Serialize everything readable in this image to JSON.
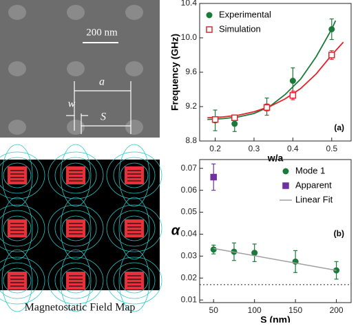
{
  "panels": {
    "sem": {
      "scale_bar": "200 nm",
      "labels": [
        "a",
        "w",
        "S"
      ]
    },
    "field_map": {
      "caption": "Magnetostatic Field Map"
    }
  },
  "chart_data": [
    {
      "type": "scatter",
      "annotation": "(a)",
      "xlabel": "w/a",
      "ylabel": "Frequency (GHz)",
      "xlim": [
        0.16,
        0.55
      ],
      "xticks": [
        0.2,
        0.3,
        0.4,
        0.5
      ],
      "ylim": [
        8.8,
        10.4
      ],
      "yticks": [
        8.8,
        9.2,
        9.6,
        {
          "value": 10,
          "label": "10.0"
        },
        10.4
      ],
      "legend": "top-left",
      "series": [
        {
          "name": "Experimental",
          "color": "#1a7a3a",
          "marker": "circle",
          "x": [
            0.2,
            0.25,
            0.333,
            0.4,
            0.5
          ],
          "values": [
            9.04,
            9.0,
            9.2,
            9.5,
            10.1
          ],
          "errors": [
            0.12,
            0.09,
            0.1,
            0.15,
            0.12
          ],
          "fit": {
            "x": [
              0.18,
              0.22,
              0.26,
              0.3,
              0.34,
              0.38,
              0.42,
              0.46,
              0.5,
              0.51
            ],
            "values": [
              9.05,
              9.06,
              9.08,
              9.12,
              9.2,
              9.34,
              9.52,
              9.78,
              10.1,
              10.2
            ]
          }
        },
        {
          "name": "Simulation",
          "color": "#e8202a",
          "marker": "square",
          "x": [
            0.2,
            0.25,
            0.333,
            0.4,
            0.5
          ],
          "values": [
            9.05,
            9.07,
            9.19,
            9.33,
            9.8
          ],
          "errors": [
            0.03,
            0.03,
            0.04,
            0.05,
            0.05
          ],
          "fit": {
            "x": [
              0.18,
              0.22,
              0.26,
              0.3,
              0.34,
              0.38,
              0.42,
              0.46,
              0.5,
              0.53
            ],
            "values": [
              9.07,
              9.08,
              9.1,
              9.14,
              9.2,
              9.29,
              9.41,
              9.58,
              9.8,
              9.95
            ]
          }
        }
      ]
    },
    {
      "type": "scatter",
      "annotation": "(b)",
      "xlabel": "S (nm)",
      "ylabel": "α",
      "xlim": [
        33,
        218
      ],
      "xticks": [
        50,
        100,
        150,
        200
      ],
      "ylim": [
        0.0088,
        0.074
      ],
      "yticks": [
        0.01,
        0.02,
        0.03,
        0.04,
        0.05,
        0.06,
        0.07
      ],
      "legend": "top-right",
      "reference_line": 0.017,
      "series": [
        {
          "name": "Mode 1",
          "color": "#1a7a3a",
          "marker": "circle",
          "x": [
            50,
            75,
            100,
            150,
            200
          ],
          "values": [
            0.033,
            0.032,
            0.0315,
            0.0275,
            0.0235
          ],
          "errors": [
            0.002,
            0.004,
            0.004,
            0.005,
            0.004
          ]
        },
        {
          "name": "Apparent",
          "color": "#7030a0",
          "marker": "square",
          "x": [
            50
          ],
          "values": [
            0.066
          ],
          "errors": [
            0.006
          ]
        },
        {
          "name": "Linear Fit",
          "color": "#a0a0a0",
          "marker": "line",
          "x": [
            50,
            200
          ],
          "values": [
            0.0335,
            0.0235
          ]
        }
      ]
    }
  ]
}
